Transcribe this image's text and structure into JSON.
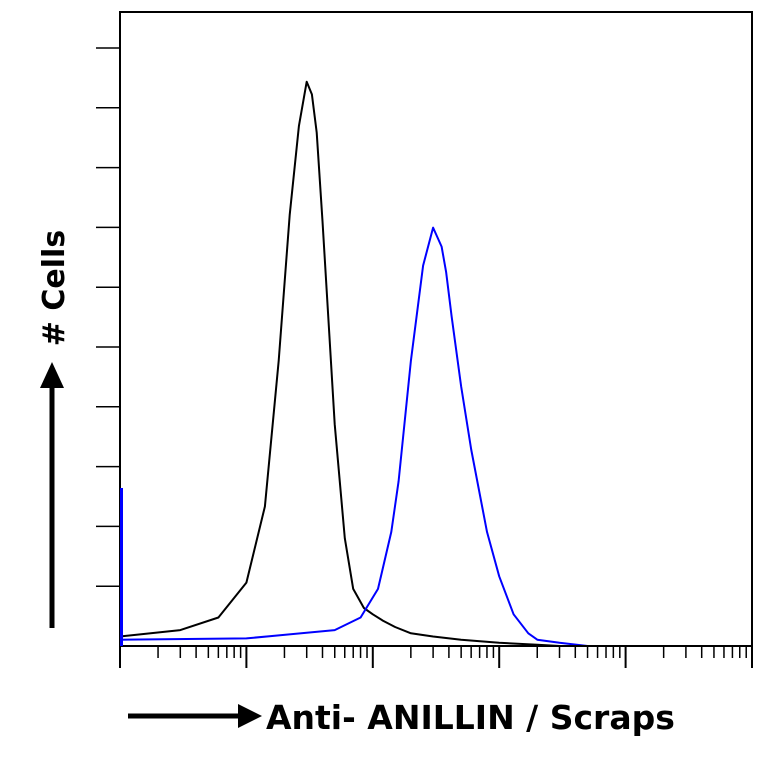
{
  "chart_data": {
    "type": "line",
    "title": "",
    "xlabel": "Anti- ANILLIN / Scraps",
    "ylabel": "# Cells",
    "x_scale": "log",
    "xlim": [
      1,
      100000
    ],
    "ylim": [
      0,
      100
    ],
    "grid": false,
    "series": [
      {
        "color": "#000000",
        "x": [
          1,
          3,
          6,
          10,
          14,
          18,
          22,
          26,
          30,
          33,
          36,
          40,
          45,
          50,
          60,
          70,
          85,
          100,
          120,
          150,
          200,
          300,
          500,
          1000,
          2000,
          3000
        ],
        "y": [
          1.5,
          2.5,
          4.5,
          10,
          22,
          45,
          68,
          82,
          89,
          87,
          81,
          67,
          50,
          35,
          17,
          9,
          6,
          5,
          4,
          3,
          2,
          1.5,
          1,
          0.5,
          0.2,
          0
        ]
      },
      {
        "color": "#0000ff",
        "x": [
          1,
          10,
          50,
          80,
          110,
          140,
          160,
          200,
          250,
          300,
          350,
          380,
          420,
          500,
          600,
          800,
          1000,
          1300,
          1700,
          2000,
          3000,
          5000
        ],
        "y": [
          1,
          1.2,
          2.5,
          4.5,
          9,
          18,
          26,
          45,
          60,
          66,
          63,
          59,
          52,
          41,
          31,
          18,
          11,
          5,
          2,
          1,
          0.5,
          0
        ]
      }
    ]
  }
}
